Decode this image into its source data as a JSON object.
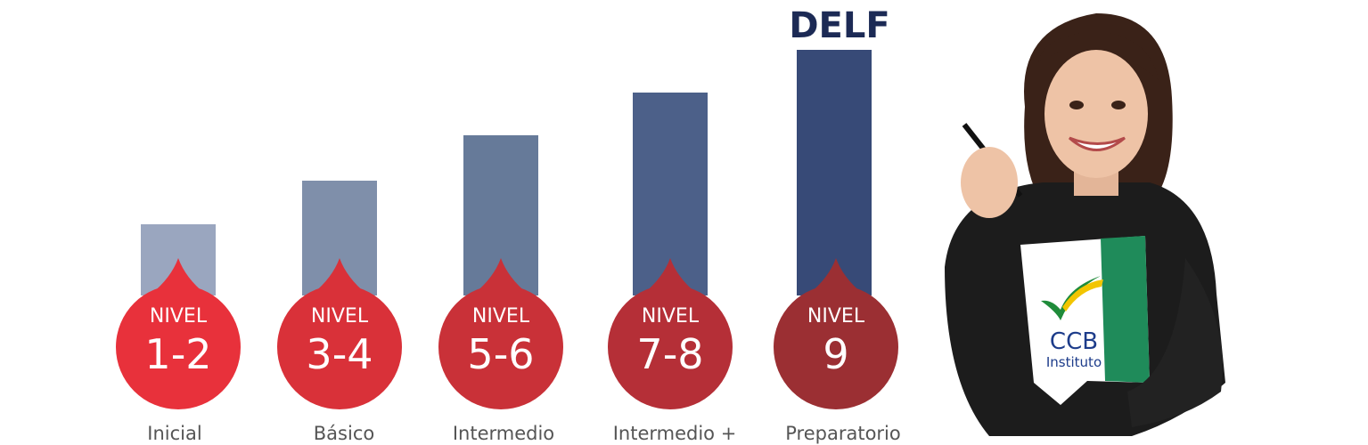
{
  "headline": "DELF",
  "levels": [
    {
      "prefix": "NIVEL",
      "number": "1-2",
      "label": "Inicial"
    },
    {
      "prefix": "NIVEL",
      "number": "3-4",
      "label": "Básico"
    },
    {
      "prefix": "NIVEL",
      "number": "5-6",
      "label": "Intermedio"
    },
    {
      "prefix": "NIVEL",
      "number": "7-8",
      "label": "Intermedio +"
    },
    {
      "prefix": "NIVEL",
      "number": "9",
      "label": "Preparatorio"
    }
  ],
  "logo": {
    "name": "CCB",
    "subtitle": "Instituto"
  }
}
